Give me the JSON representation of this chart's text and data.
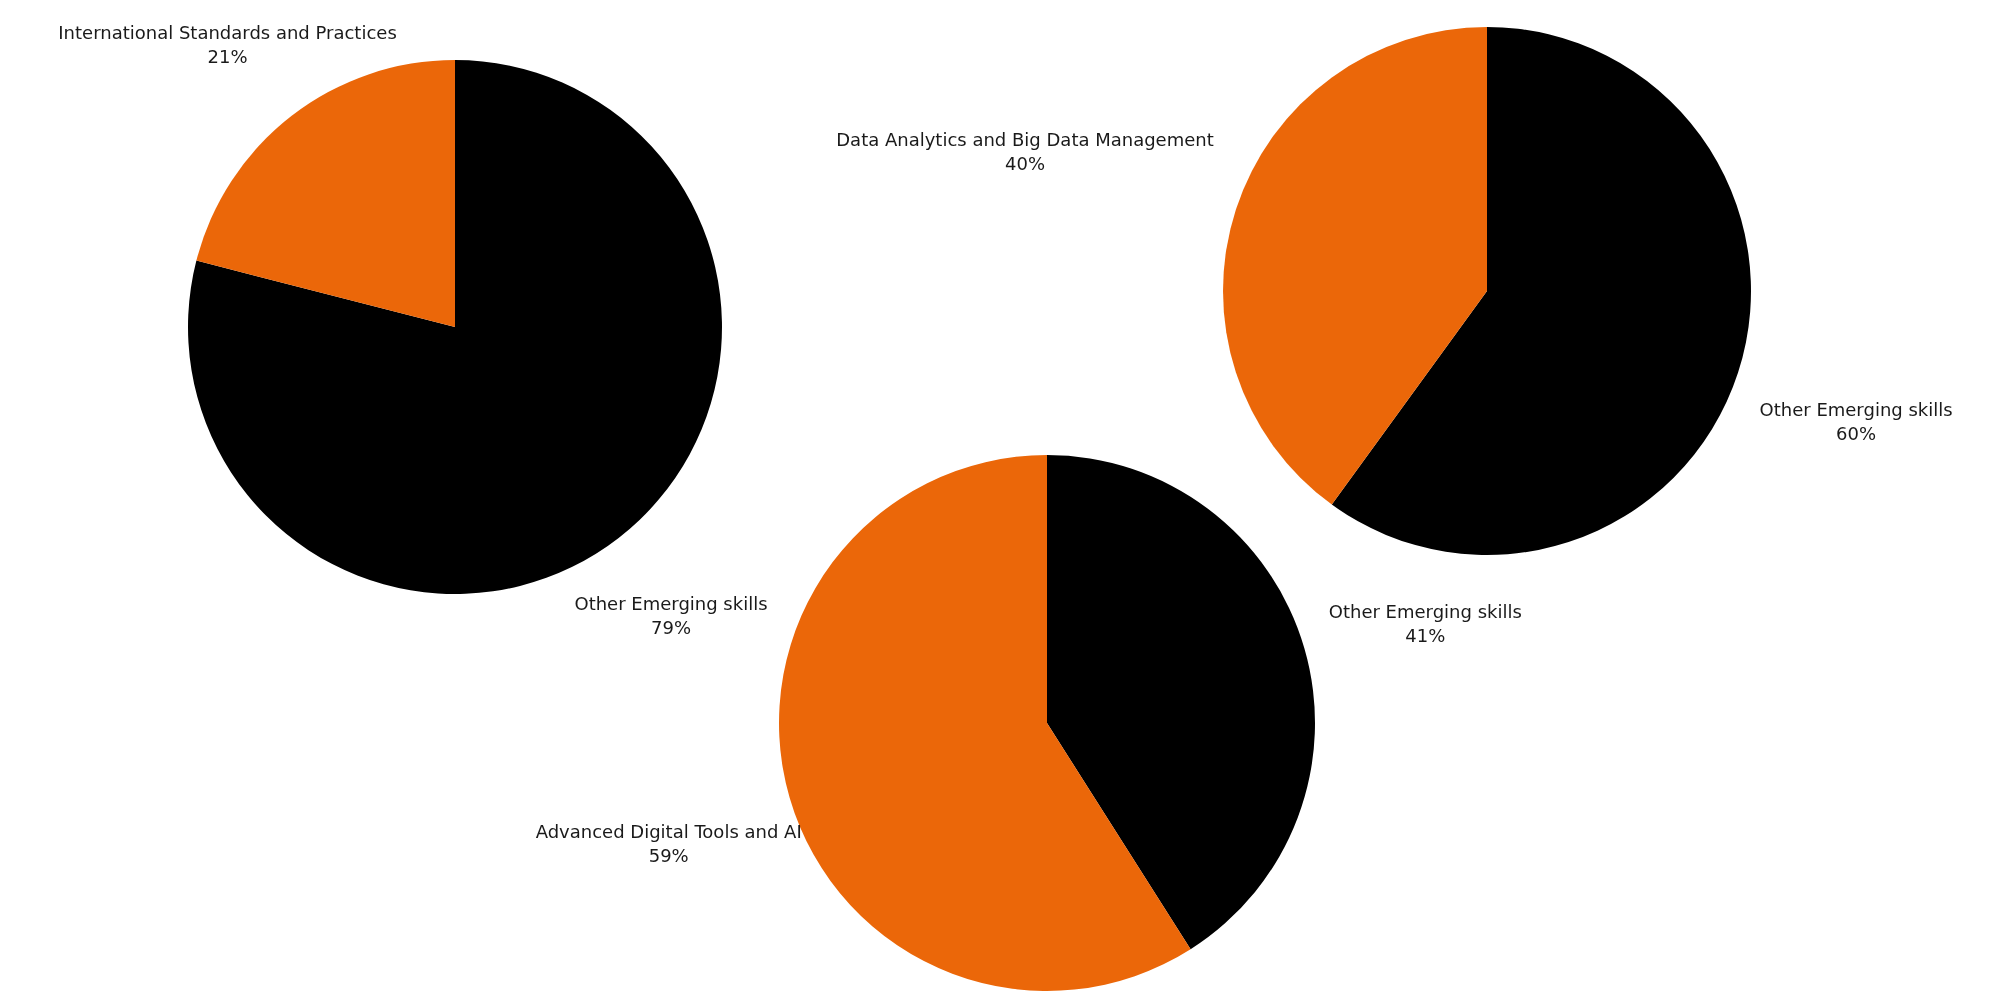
{
  "chart_data": [
    {
      "type": "pie",
      "categories": [
        "Other Emerging skills",
        "International Standards and Practices"
      ],
      "values": [
        79,
        21
      ],
      "colors": [
        "#000000",
        "#eb6709"
      ],
      "value_labels": [
        "79%",
        "21%"
      ]
    },
    {
      "type": "pie",
      "categories": [
        "Other Emerging skills",
        "Data Analytics and Big Data Management"
      ],
      "values": [
        60,
        40
      ],
      "colors": [
        "#000000",
        "#eb6709"
      ],
      "value_labels": [
        "60%",
        "40%"
      ]
    },
    {
      "type": "pie",
      "categories": [
        "Other Emerging skills",
        "Advanced Digital Tools and AI"
      ],
      "values": [
        41,
        59
      ],
      "colors": [
        "#000000",
        "#eb6709"
      ],
      "value_labels": [
        "41%",
        "59%"
      ]
    }
  ]
}
